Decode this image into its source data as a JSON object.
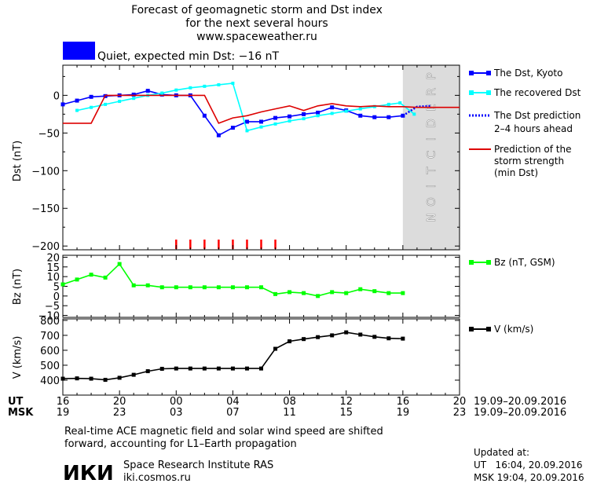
{
  "header": {
    "title_line1": "Forecast of geomagnetic storm and Dst index",
    "title_line2": "for the next several hours",
    "website": "www.spaceweather.ru",
    "status_text": "Quiet, expected min Dst: −16 nT",
    "status_color": "#0000ff"
  },
  "legend": {
    "dst_kyoto": "The Dst, Kyoto",
    "dst_recovered": "The recovered Dst",
    "dst_prediction_line1": "The Dst prediction",
    "dst_prediction_line2": "2–4 hours ahead",
    "storm_line1": "Prediction of the",
    "storm_line2": "storm strength",
    "storm_line3": "(min Dst)",
    "bz": "Bz (nT, GSM)",
    "v": "V (km/s)"
  },
  "colors": {
    "dst_kyoto": "#0000ff",
    "dst_recovered": "#00ffff",
    "dst_prediction": "#0000ff",
    "storm_prediction": "#dd0000",
    "bz": "#00ff00",
    "v": "#000000",
    "prediction_band": "#dcdcdc",
    "storm_ticks": "#ff0000"
  },
  "prediction_label": "PREDICTION",
  "time_axis": {
    "ut_label": "UT",
    "msk_label": "MSK",
    "ut_ticks": [
      "16",
      "20",
      "00",
      "04",
      "08",
      "12",
      "16",
      "20"
    ],
    "msk_ticks": [
      "19",
      "23",
      "03",
      "07",
      "11",
      "15",
      "19",
      "23"
    ],
    "ut_date_range": "19.09–20.09.2016",
    "msk_date_range": "19.09–20.09.2016"
  },
  "footer": {
    "note_line1": "Real-time ACE magnetic field and solar wind speed are shifted",
    "note_line2": "forward, accounting for L1–Earth propagation",
    "institute_logo": "ИКИ",
    "institute_name": "Space Research Institute RAS",
    "institute_site": "iki.cosmos.ru",
    "updated_label": "Updated at:",
    "updated_ut": "UT   16:04, 20.09.2016",
    "updated_msk": "MSK 19:04, 20.09.2016"
  },
  "chart_data": [
    {
      "type": "line",
      "panel": "dst",
      "xlabel": "",
      "ylabel": "Dst (nT)",
      "xlim": [
        16,
        44
      ],
      "ylim": [
        -205,
        40
      ],
      "yticks": [
        0,
        -50,
        -100,
        -150,
        -200
      ],
      "yticklabels": [
        "0",
        "−50",
        "−100",
        "−150",
        "−200"
      ],
      "prediction_start": 40,
      "storm_tick_hours": [
        24,
        25,
        26,
        27,
        28,
        29,
        30,
        31
      ],
      "series": [
        {
          "name": "The Dst, Kyoto",
          "x": [
            16,
            17,
            18,
            19,
            20,
            21,
            22,
            23,
            24,
            25,
            26,
            27,
            28,
            29,
            30,
            31,
            32,
            33,
            34,
            35,
            36,
            37,
            38,
            39,
            40
          ],
          "y": [
            -12,
            -7,
            -2,
            -1,
            0,
            1,
            6,
            1,
            0,
            0,
            -27,
            -53,
            -43,
            -35,
            -35,
            -30,
            -28,
            -25,
            -23,
            -16,
            -20,
            -27,
            -29,
            -29,
            -27
          ]
        },
        {
          "name": "The recovered Dst",
          "x": [
            17,
            18,
            19,
            20,
            21,
            22,
            23,
            24,
            25,
            26,
            27,
            28,
            29,
            30,
            31,
            32,
            33,
            34,
            35,
            36,
            37,
            38,
            39,
            39.8,
            40.8
          ],
          "y": [
            -20,
            -16,
            -12,
            -8,
            -4,
            0,
            3,
            7,
            10,
            12,
            14,
            16,
            -47,
            -42,
            -38,
            -34,
            -31,
            -27,
            -24,
            -21,
            -18,
            -15,
            -12,
            -10,
            -25
          ]
        },
        {
          "name": "The Dst prediction 2–4 hours ahead",
          "x": [
            40,
            41,
            42
          ],
          "y": [
            -27,
            -15,
            -14
          ]
        },
        {
          "name": "Prediction of the storm strength (min Dst)",
          "x": [
            16,
            18,
            19,
            20,
            21,
            22,
            23,
            24,
            25,
            26,
            27,
            28,
            29,
            30,
            31,
            32,
            33,
            34,
            35,
            36,
            37,
            38,
            39,
            40,
            41,
            44
          ],
          "y": [
            -37,
            -37,
            0,
            0,
            0,
            0,
            0,
            0,
            0,
            0,
            -37,
            -30,
            -27,
            -22,
            -18,
            -14,
            -20,
            -14,
            -11,
            -14,
            -15,
            -14,
            -15,
            -15,
            -16,
            -16
          ]
        }
      ]
    },
    {
      "type": "line",
      "panel": "bz",
      "ylabel": "Bz (nT)",
      "xlim": [
        16,
        44
      ],
      "ylim": [
        -11,
        21
      ],
      "yticks": [
        20,
        15,
        10,
        5,
        0,
        -5,
        -10
      ],
      "yticklabels": [
        "20",
        "15",
        "10",
        "5",
        "0",
        "−5",
        "−10"
      ],
      "series": [
        {
          "name": "Bz (nT, GSM)",
          "x": [
            16,
            17,
            18,
            19,
            20,
            21,
            22,
            23,
            24,
            25,
            26,
            27,
            28,
            29,
            30,
            31,
            32,
            33,
            34,
            35,
            36,
            37,
            38,
            39,
            40
          ],
          "y": [
            6,
            8.5,
            11,
            9.5,
            16.5,
            5.5,
            5.5,
            4.5,
            4.5,
            4.5,
            4.5,
            4.5,
            4.5,
            4.5,
            4.5,
            1,
            2,
            1.5,
            0,
            2,
            1.5,
            3.5,
            2.5,
            1.5,
            1.5
          ]
        }
      ]
    },
    {
      "type": "line",
      "panel": "v",
      "ylabel": "V (km/s)",
      "xlim": [
        16,
        44
      ],
      "ylim": [
        300,
        810
      ],
      "yticks": [
        800,
        700,
        600,
        500,
        400
      ],
      "yticklabels": [
        "800",
        "700",
        "600",
        "500",
        "400"
      ],
      "series": [
        {
          "name": "V (km/s)",
          "x": [
            16,
            17,
            18,
            19,
            20,
            21,
            22,
            23,
            24,
            25,
            26,
            27,
            28,
            29,
            30,
            31,
            32,
            33,
            34,
            35,
            36,
            37,
            38,
            39,
            40
          ],
          "y": [
            410,
            412,
            410,
            402,
            416,
            436,
            460,
            476,
            478,
            478,
            478,
            478,
            478,
            478,
            478,
            610,
            660,
            675,
            688,
            700,
            720,
            705,
            690,
            680,
            678
          ]
        }
      ]
    }
  ]
}
